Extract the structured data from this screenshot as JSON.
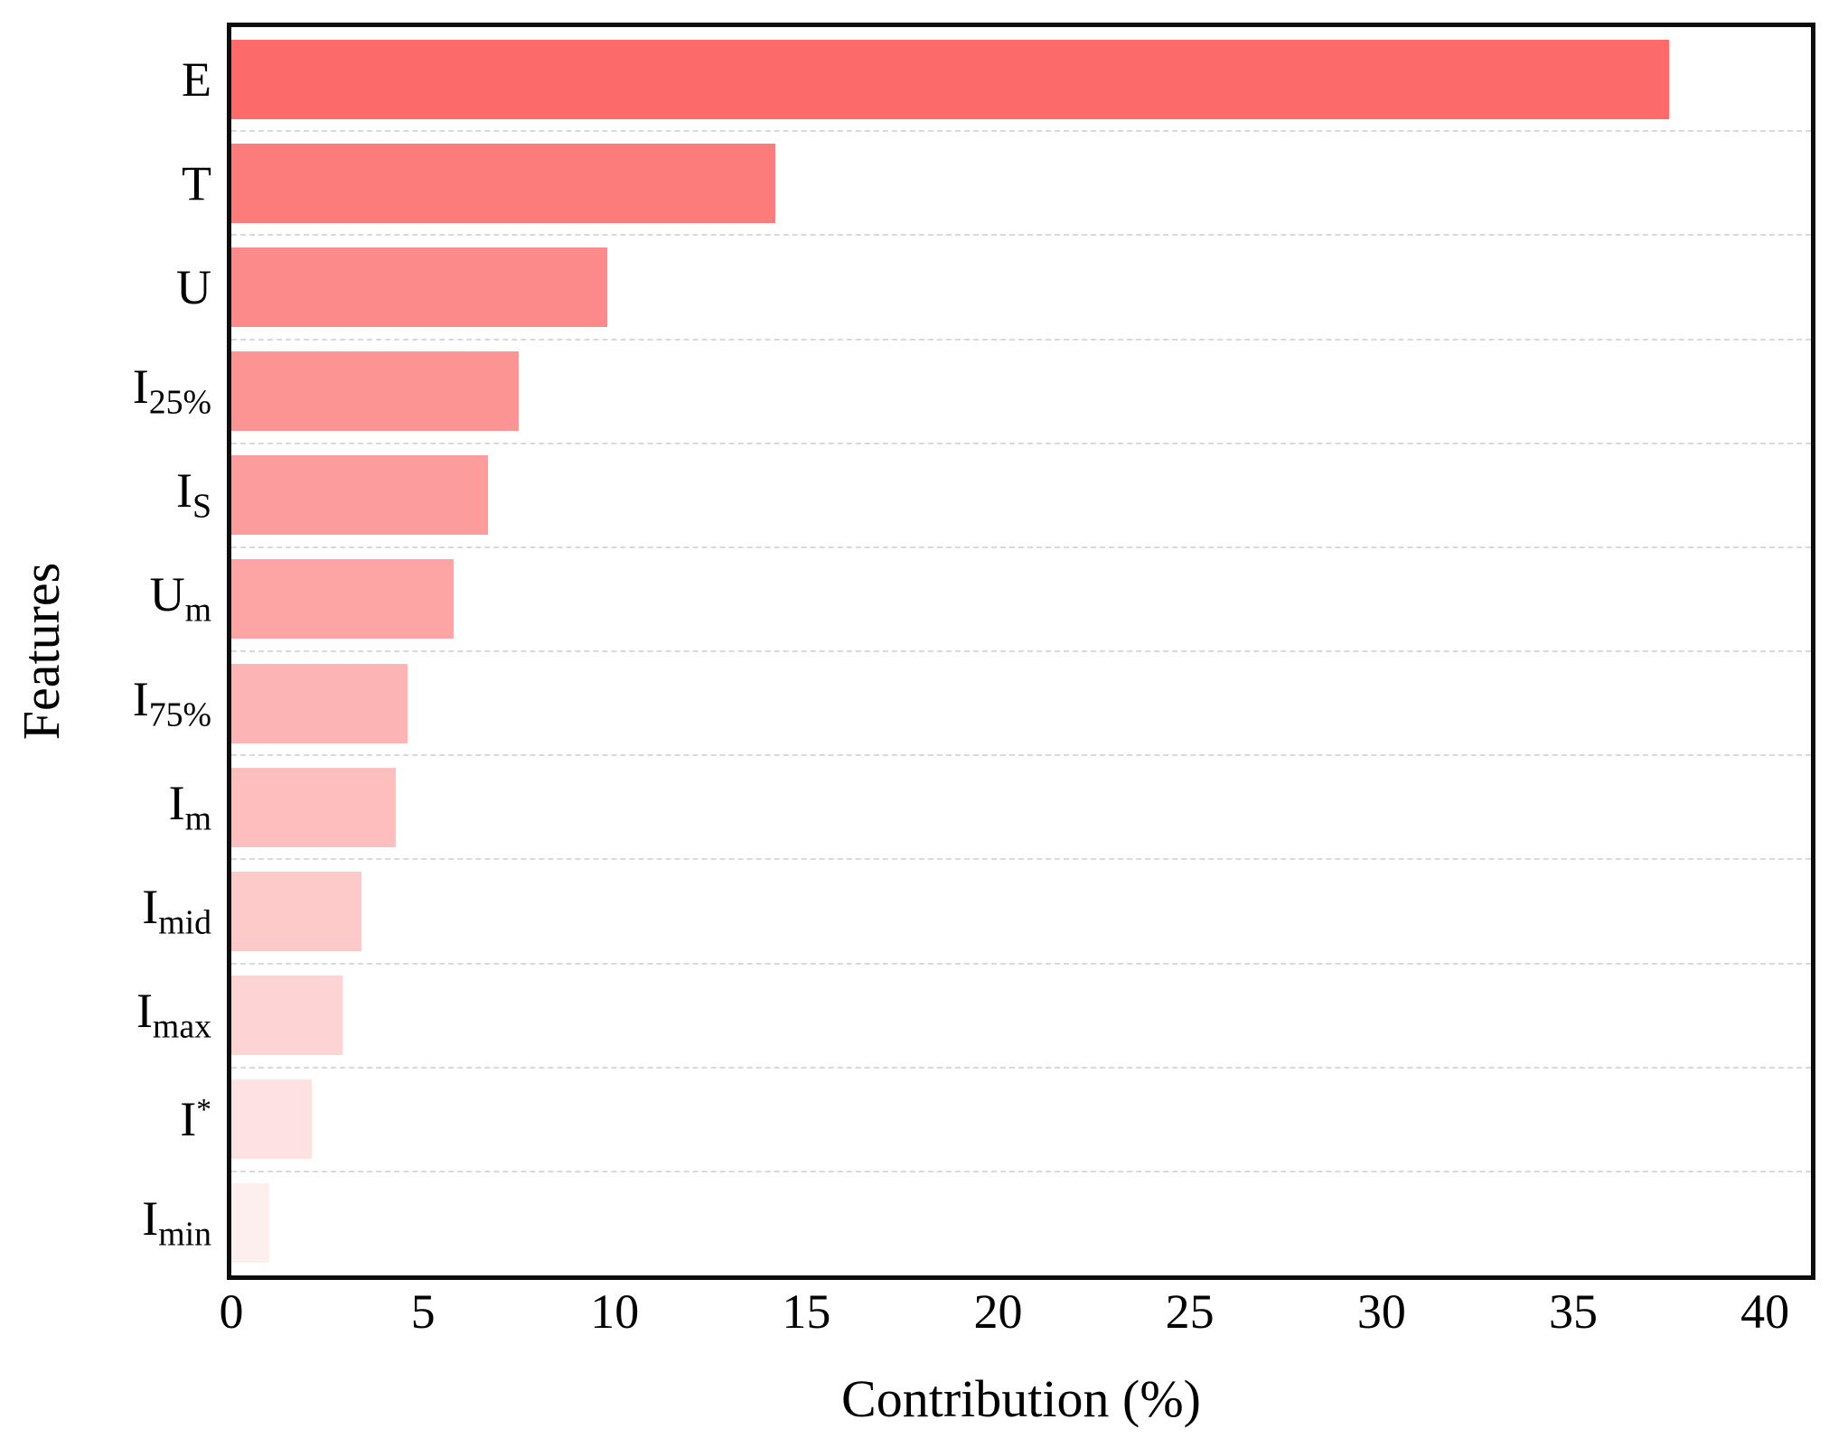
{
  "chart_data": {
    "type": "bar",
    "orientation": "horizontal",
    "title": "",
    "xlabel": "Contribution (%)",
    "ylabel": "Features",
    "xlim": [
      0,
      41.2
    ],
    "xticks": [
      0,
      5,
      10,
      15,
      20,
      25,
      30,
      35,
      40
    ],
    "grid": "dashed horizontal gridlines between category rows",
    "legend": "none",
    "categories": [
      {
        "main": "E",
        "sub": "",
        "sup": ""
      },
      {
        "main": "T",
        "sub": "",
        "sup": ""
      },
      {
        "main": "U",
        "sub": "",
        "sup": ""
      },
      {
        "main": "I",
        "sub": "25%",
        "sup": ""
      },
      {
        "main": "I",
        "sub": "S",
        "sup": ""
      },
      {
        "main": "U",
        "sub": "m",
        "sup": ""
      },
      {
        "main": "I",
        "sub": "75%",
        "sup": ""
      },
      {
        "main": "I",
        "sub": "m",
        "sup": ""
      },
      {
        "main": "I",
        "sub": "mid",
        "sup": ""
      },
      {
        "main": "I",
        "sub": "max",
        "sup": ""
      },
      {
        "main": "I",
        "sub": "",
        "sup": "*"
      },
      {
        "main": "I",
        "sub": "min",
        "sup": ""
      }
    ],
    "values": [
      37.5,
      14.2,
      9.8,
      7.5,
      6.7,
      5.8,
      4.6,
      4.3,
      3.4,
      2.9,
      2.1,
      1.0
    ],
    "bar_colors": [
      "#FC6A6A",
      "#FC7C7C",
      "#FC8A8A",
      "#FC9494",
      "#FD9C9C",
      "#FDA4A4",
      "#FDB4B4",
      "#FDBEBE",
      "#FEC9C9",
      "#FED3D3",
      "#FEE2E2",
      "#FEEFEF"
    ],
    "frame_color": "#0d0d0d",
    "gridline_color": "#d9d9d9",
    "background_color": "#ffffff"
  }
}
